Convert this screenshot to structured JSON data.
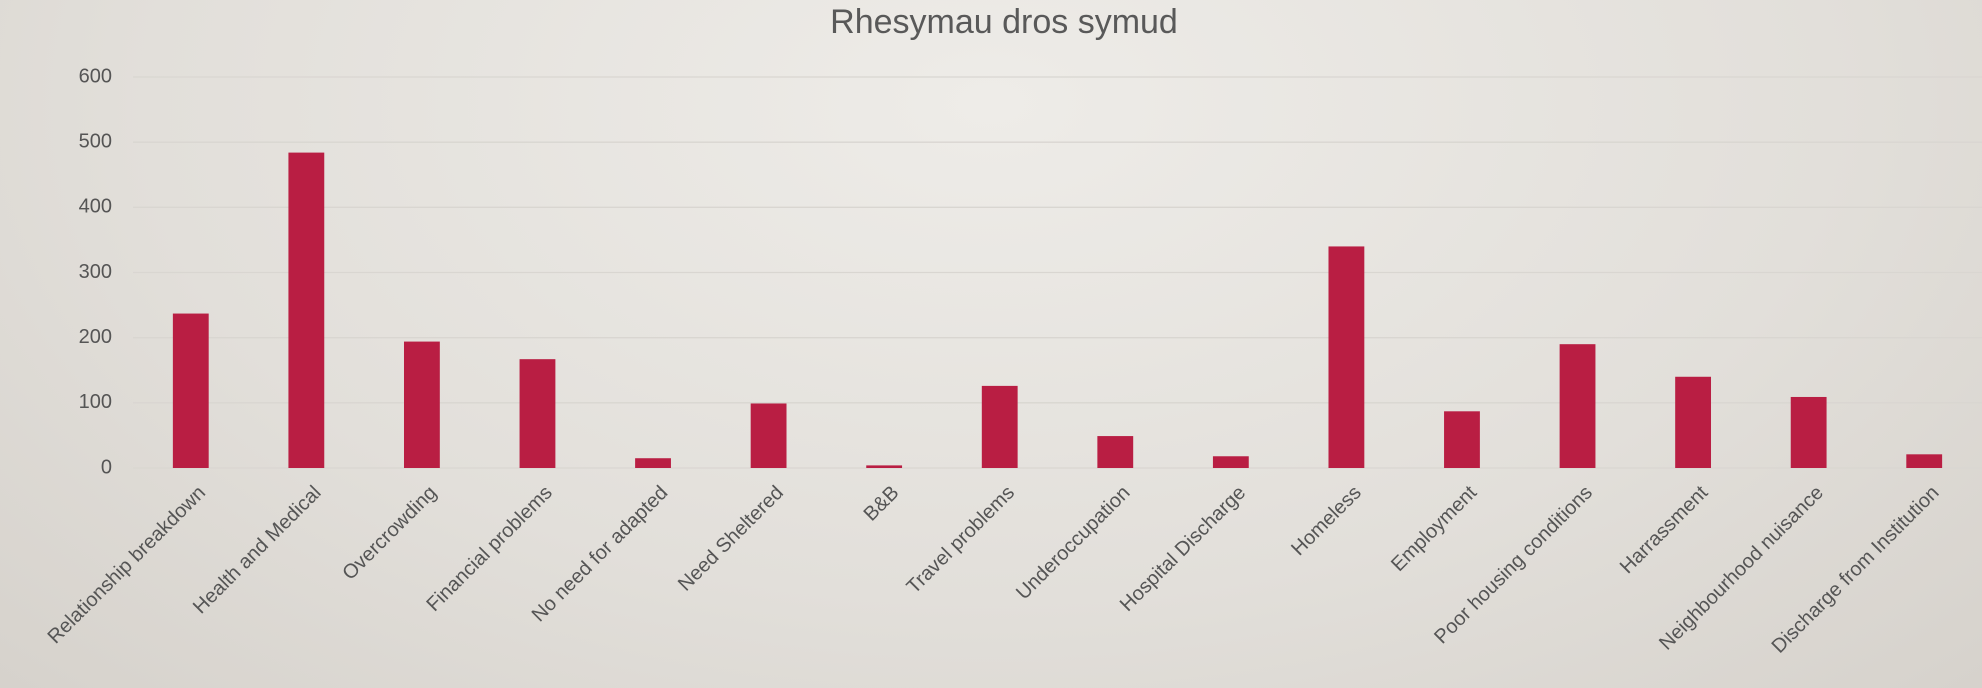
{
  "chart_data": {
    "type": "bar",
    "title": "Rhesymau dros symud",
    "categories": [
      "Relationship breakdown",
      "Health and Medical",
      "Overcrowding",
      "Financial problems",
      "No need for adapted",
      "Need Sheltered",
      "B&B",
      "Travel problems",
      "Underoccupation",
      "Hospital Discharge",
      "Homeless",
      "Employment",
      "Poor housing conditions",
      "Harrassment",
      "Neighbourhood nuisance",
      "Discharge from Institution"
    ],
    "values": [
      237,
      484,
      194,
      167,
      15,
      99,
      4,
      126,
      49,
      18,
      340,
      87,
      190,
      140,
      109,
      21
    ],
    "color": "#b91e43",
    "ylim": [
      0,
      600
    ],
    "yticks": [
      0,
      100,
      200,
      300,
      400,
      500,
      600
    ],
    "grid": true
  }
}
